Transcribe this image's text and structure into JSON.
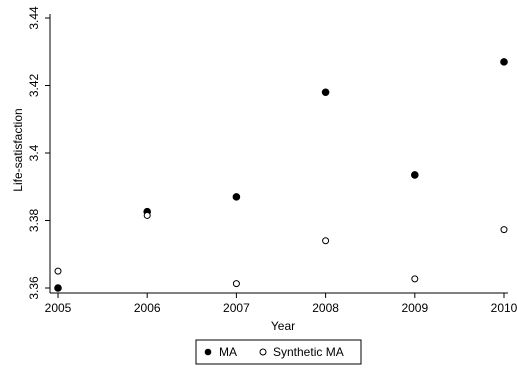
{
  "chart_data": {
    "type": "scatter",
    "title": "",
    "xlabel": "Year",
    "ylabel": "Life-satisfaction",
    "x": [
      2005,
      2006,
      2007,
      2008,
      2009,
      2010
    ],
    "xticks": [
      "2005",
      "2006",
      "2007",
      "2008",
      "2009",
      "2010"
    ],
    "yticks": [
      "3.36",
      "3.38",
      "3.4",
      "3.42",
      "3.44"
    ],
    "xlim": [
      2005,
      2010
    ],
    "ylim": [
      3.36,
      3.44
    ],
    "grid": false,
    "legend_position": "bottom",
    "series": [
      {
        "name": "MA",
        "marker": "filled-circle",
        "color": "#000000",
        "values": [
          3.36,
          3.3826,
          3.387,
          3.418,
          3.3935,
          3.427
        ]
      },
      {
        "name": "Synthetic MA",
        "marker": "hollow-circle",
        "color": "#000000",
        "values": [
          3.365,
          3.3815,
          3.3613,
          3.374,
          3.3627,
          3.3773
        ]
      }
    ]
  }
}
